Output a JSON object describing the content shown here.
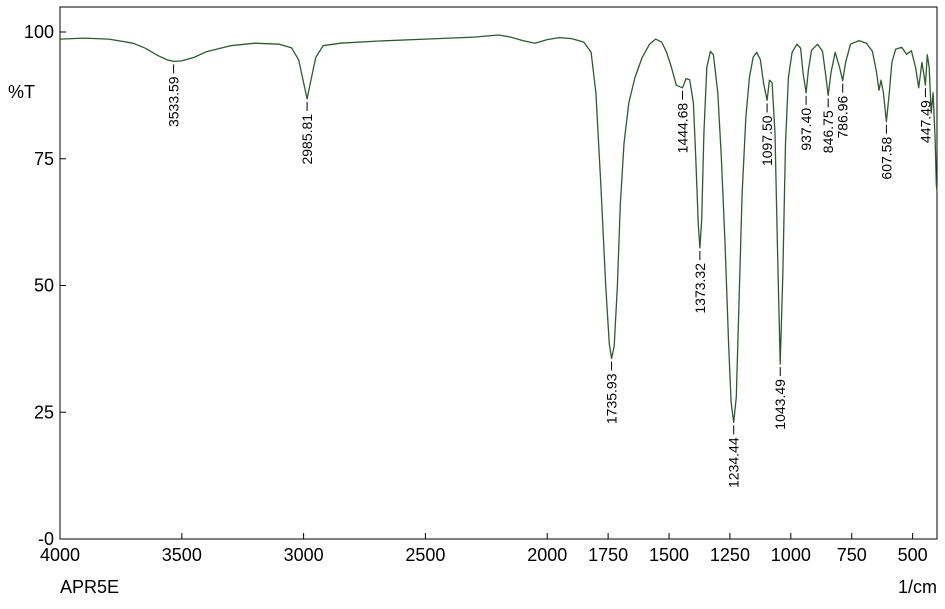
{
  "chart_data": {
    "type": "line",
    "title": "",
    "sample_label": "APR5E",
    "xlabel": "1/cm",
    "ylabel": "%T",
    "xlim": [
      4000,
      400
    ],
    "ylim": [
      0,
      105
    ],
    "x_ticks": [
      4000,
      3500,
      3000,
      2500,
      2000,
      1750,
      1500,
      1250,
      1000,
      750,
      500
    ],
    "x_tick_labels": [
      "4000",
      "3500",
      "3000",
      "2500",
      "2000",
      "1750",
      "1500",
      "1250",
      "1000",
      "750",
      "500"
    ],
    "y_ticks": [
      0,
      25,
      50,
      75,
      100
    ],
    "y_tick_labels": [
      "-0",
      "25",
      "50",
      "75",
      "100"
    ],
    "grid": false,
    "line_color": "#2e5a2e",
    "series": [
      {
        "name": "",
        "points": [
          [
            4000,
            98.6
          ],
          [
            3900,
            98.8
          ],
          [
            3800,
            98.6
          ],
          [
            3700,
            97.8
          ],
          [
            3650,
            96.8
          ],
          [
            3600,
            95.4
          ],
          [
            3560,
            94.5
          ],
          [
            3533.59,
            94.2
          ],
          [
            3500,
            94.3
          ],
          [
            3450,
            95.0
          ],
          [
            3400,
            96.1
          ],
          [
            3300,
            97.3
          ],
          [
            3200,
            97.8
          ],
          [
            3100,
            97.6
          ],
          [
            3050,
            96.9
          ],
          [
            3020,
            94.5
          ],
          [
            3000,
            90.0
          ],
          [
            2985.81,
            86.8
          ],
          [
            2970,
            90.5
          ],
          [
            2950,
            95.0
          ],
          [
            2920,
            97.3
          ],
          [
            2850,
            97.8
          ],
          [
            2700,
            98.2
          ],
          [
            2500,
            98.6
          ],
          [
            2300,
            99.0
          ],
          [
            2200,
            99.4
          ],
          [
            2150,
            99.0
          ],
          [
            2100,
            98.3
          ],
          [
            2050,
            97.8
          ],
          [
            2000,
            98.5
          ],
          [
            1950,
            98.9
          ],
          [
            1900,
            98.7
          ],
          [
            1850,
            98.0
          ],
          [
            1820,
            96.0
          ],
          [
            1800,
            88.0
          ],
          [
            1780,
            70.0
          ],
          [
            1760,
            50.0
          ],
          [
            1745,
            38.5
          ],
          [
            1735.93,
            35.6
          ],
          [
            1725,
            38.0
          ],
          [
            1712,
            50.0
          ],
          [
            1700,
            66.0
          ],
          [
            1685,
            78.0
          ],
          [
            1665,
            86.0
          ],
          [
            1640,
            91.0
          ],
          [
            1610,
            95.0
          ],
          [
            1580,
            97.6
          ],
          [
            1555,
            98.6
          ],
          [
            1530,
            98.0
          ],
          [
            1510,
            96.0
          ],
          [
            1490,
            93.0
          ],
          [
            1470,
            89.5
          ],
          [
            1444.68,
            89.0
          ],
          [
            1430,
            90.8
          ],
          [
            1415,
            90.6
          ],
          [
            1400,
            86.0
          ],
          [
            1390,
            75.0
          ],
          [
            1380,
            62.0
          ],
          [
            1373.32,
            57.4
          ],
          [
            1366,
            63.0
          ],
          [
            1357,
            80.0
          ],
          [
            1345,
            93.0
          ],
          [
            1330,
            96.2
          ],
          [
            1318,
            95.5
          ],
          [
            1300,
            88.0
          ],
          [
            1285,
            75.0
          ],
          [
            1270,
            58.0
          ],
          [
            1255,
            38.0
          ],
          [
            1245,
            27.0
          ],
          [
            1234.44,
            23.0
          ],
          [
            1224,
            28.0
          ],
          [
            1212,
            48.0
          ],
          [
            1200,
            68.0
          ],
          [
            1185,
            83.0
          ],
          [
            1170,
            91.0
          ],
          [
            1155,
            95.0
          ],
          [
            1140,
            96.0
          ],
          [
            1125,
            94.5
          ],
          [
            1112,
            90.0
          ],
          [
            1097.5,
            86.5
          ],
          [
            1088,
            90.5
          ],
          [
            1077,
            90.0
          ],
          [
            1065,
            80.0
          ],
          [
            1055,
            58.0
          ],
          [
            1043.49,
            34.5
          ],
          [
            1033,
            52.0
          ],
          [
            1022,
            78.0
          ],
          [
            1010,
            91.0
          ],
          [
            995,
            96.0
          ],
          [
            975,
            97.6
          ],
          [
            960,
            96.8
          ],
          [
            950,
            92.0
          ],
          [
            937.4,
            88.0
          ],
          [
            928,
            92.5
          ],
          [
            915,
            96.4
          ],
          [
            890,
            97.6
          ],
          [
            870,
            96.2
          ],
          [
            858,
            92.0
          ],
          [
            846.75,
            87.5
          ],
          [
            835,
            92.0
          ],
          [
            818,
            96.0
          ],
          [
            800,
            93.0
          ],
          [
            786.96,
            90.4
          ],
          [
            775,
            94.0
          ],
          [
            755,
            97.6
          ],
          [
            720,
            98.3
          ],
          [
            690,
            97.8
          ],
          [
            665,
            96.2
          ],
          [
            648,
            92.0
          ],
          [
            638,
            88.5
          ],
          [
            630,
            90.5
          ],
          [
            620,
            88.0
          ],
          [
            607.58,
            82.3
          ],
          [
            596,
            88.0
          ],
          [
            585,
            94.0
          ],
          [
            570,
            96.6
          ],
          [
            545,
            97.0
          ],
          [
            525,
            95.6
          ],
          [
            505,
            96.3
          ],
          [
            488,
            93.0
          ],
          [
            475,
            89.0
          ],
          [
            462,
            94.0
          ],
          [
            455,
            92.0
          ],
          [
            447.49,
            89.5
          ],
          [
            440,
            95.5
          ],
          [
            432,
            93.0
          ],
          [
            424,
            84.0
          ],
          [
            416,
            88.0
          ],
          [
            408,
            79.0
          ],
          [
            403,
            70.0
          ],
          [
            400,
            68.5
          ]
        ]
      }
    ],
    "peak_labels": [
      {
        "x": 3533.59,
        "y": 94.2,
        "label": "3533.59"
      },
      {
        "x": 2985.81,
        "y": 86.8,
        "label": "2985.81"
      },
      {
        "x": 1735.93,
        "y": 35.6,
        "label": "1735.93"
      },
      {
        "x": 1444.68,
        "y": 89.0,
        "label": "1444.68"
      },
      {
        "x": 1373.32,
        "y": 57.4,
        "label": "1373.32"
      },
      {
        "x": 1234.44,
        "y": 23.0,
        "label": "1234.44"
      },
      {
        "x": 1097.5,
        "y": 86.5,
        "label": "1097.50"
      },
      {
        "x": 1043.49,
        "y": 34.5,
        "label": "1043.49"
      },
      {
        "x": 937.4,
        "y": 88.0,
        "label": "937.40"
      },
      {
        "x": 846.75,
        "y": 87.5,
        "label": "846.75"
      },
      {
        "x": 786.96,
        "y": 90.4,
        "label": "786.96"
      },
      {
        "x": 607.58,
        "y": 82.3,
        "label": "607.58"
      },
      {
        "x": 447.49,
        "y": 89.5,
        "label": "447.49"
      }
    ]
  }
}
